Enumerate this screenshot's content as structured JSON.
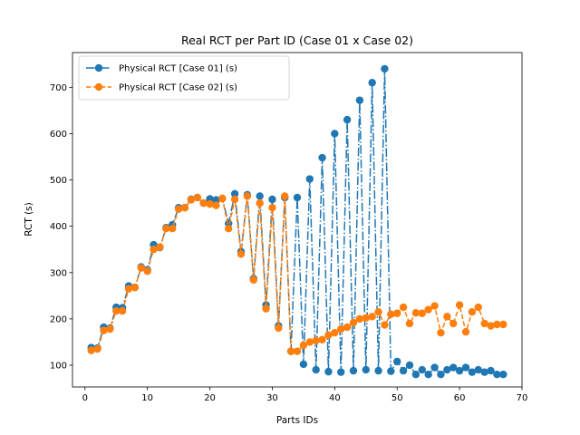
{
  "chart_data": {
    "type": "line",
    "title": "Real RCT per Part ID (Case 01 x Case 02)",
    "xlabel": "Parts IDs",
    "ylabel": "RCT (s)",
    "xlim": [
      -2,
      70
    ],
    "ylim": [
      53,
      775
    ],
    "xticks": [
      0,
      10,
      20,
      30,
      40,
      50,
      60,
      70
    ],
    "yticks": [
      100,
      200,
      300,
      400,
      500,
      600,
      700
    ],
    "grid": false,
    "legend_position": "upper-left",
    "series": [
      {
        "name": "Physical RCT [Case 01] (s)",
        "color": "#1f77b4",
        "linestyle": "dashdot",
        "x": [
          1,
          2,
          3,
          4,
          5,
          6,
          7,
          8,
          9,
          10,
          11,
          12,
          13,
          14,
          15,
          16,
          17,
          18,
          19,
          20,
          21,
          22,
          23,
          24,
          25,
          26,
          27,
          28,
          29,
          30,
          31,
          32,
          33,
          34,
          35,
          36,
          37,
          38,
          39,
          40,
          41,
          42,
          43,
          44,
          45,
          46,
          47,
          48,
          49,
          50,
          51,
          52,
          53,
          54,
          55,
          56,
          57,
          58,
          59,
          60,
          61,
          62,
          63,
          64,
          65,
          66,
          67
        ],
        "y": [
          138,
          137,
          182,
          180,
          225,
          224,
          271,
          268,
          312,
          306,
          360,
          354,
          397,
          403,
          440,
          440,
          458,
          462,
          450,
          459,
          457,
          460,
          406,
          470,
          345,
          468,
          287,
          465,
          230,
          458,
          185,
          462,
          130,
          462,
          102,
          502,
          90,
          548,
          86,
          600,
          85,
          630,
          88,
          672,
          90,
          710,
          88,
          740,
          87,
          108,
          88,
          100,
          80,
          90,
          80,
          95,
          80,
          90,
          95,
          88,
          95,
          85,
          90,
          85,
          88,
          80,
          80
        ]
      },
      {
        "name": "Physical RCT [Case 02] (s)",
        "color": "#ff7f0e",
        "linestyle": "dashed",
        "x": [
          1,
          2,
          3,
          4,
          5,
          6,
          7,
          8,
          9,
          10,
          11,
          12,
          13,
          14,
          15,
          16,
          17,
          18,
          19,
          20,
          21,
          22,
          23,
          24,
          25,
          26,
          27,
          28,
          29,
          30,
          31,
          32,
          33,
          34,
          35,
          36,
          37,
          38,
          39,
          40,
          41,
          42,
          43,
          44,
          45,
          46,
          47,
          48,
          49,
          50,
          51,
          52,
          53,
          54,
          55,
          56,
          57,
          58,
          59,
          60,
          61,
          62,
          63,
          64,
          65,
          66,
          67
        ],
        "y": [
          132,
          135,
          175,
          178,
          217,
          217,
          265,
          268,
          310,
          303,
          350,
          355,
          395,
          395,
          437,
          440,
          457,
          462,
          450,
          448,
          445,
          460,
          395,
          458,
          340,
          465,
          284,
          450,
          222,
          440,
          180,
          465,
          130,
          130,
          143,
          150,
          153,
          155,
          165,
          170,
          178,
          182,
          192,
          200,
          202,
          205,
          215,
          187,
          210,
          212,
          225,
          190,
          213,
          212,
          220,
          228,
          170,
          205,
          190,
          230,
          172,
          215,
          225,
          190,
          185,
          188,
          188
        ]
      }
    ]
  }
}
